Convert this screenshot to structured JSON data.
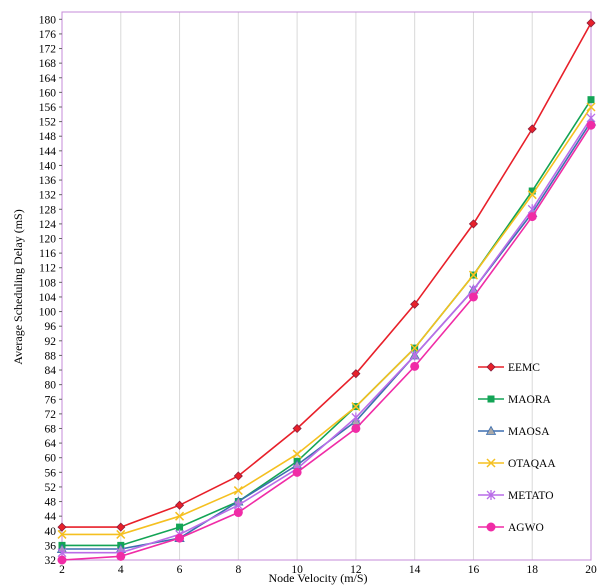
{
  "chart_data": {
    "type": "line",
    "title": "",
    "xlabel": "Node Velocity (m/S)",
    "ylabel": "Average Scheduling Delay (mS)",
    "x": [
      2,
      4,
      6,
      8,
      10,
      12,
      14,
      16,
      18,
      20
    ],
    "x_ticks": [
      "2",
      "4",
      "6",
      "8",
      "10",
      "12",
      "14",
      "16",
      "18",
      "20"
    ],
    "y_ticks": [
      "32",
      "36",
      "40",
      "44",
      "48",
      "52",
      "56",
      "60",
      "64",
      "68",
      "72",
      "76",
      "80",
      "84",
      "88",
      "92",
      "96",
      "100",
      "104",
      "108",
      "112",
      "116",
      "120",
      "124",
      "128",
      "132",
      "136",
      "140",
      "144",
      "148",
      "152",
      "156",
      "160",
      "164",
      "168",
      "172",
      "176",
      "180"
    ],
    "xlim": [
      2,
      20
    ],
    "ylim": [
      32,
      182
    ],
    "grid": "vertical",
    "legend_position": "right-inside",
    "series": [
      {
        "name": "EEMC",
        "color": "#e8202a",
        "marker": "diamond",
        "values": [
          41,
          41,
          47,
          55,
          68,
          83,
          102,
          124,
          150,
          179
        ]
      },
      {
        "name": "MAORA",
        "color": "#13a456",
        "marker": "square",
        "values": [
          36,
          36,
          41,
          48,
          59,
          74,
          90,
          110,
          133,
          158
        ]
      },
      {
        "name": "MAOSA",
        "color": "#3d6fb0",
        "marker": "triangle",
        "values": [
          35,
          35,
          38,
          48,
          58,
          70,
          88,
          106,
          127,
          152
        ]
      },
      {
        "name": "OTAQAA",
        "color": "#f5c020",
        "marker": "x",
        "values": [
          39,
          39,
          44,
          51,
          61,
          74,
          90,
          110,
          132,
          156
        ]
      },
      {
        "name": "METATO",
        "color": "#b96de8",
        "marker": "star",
        "values": [
          34,
          34,
          39,
          47,
          57,
          71,
          88,
          106,
          128,
          153
        ]
      },
      {
        "name": "AGWO",
        "color": "#f02ca6",
        "marker": "circle",
        "values": [
          32,
          33,
          38,
          45,
          56,
          68,
          85,
          104,
          126,
          151
        ]
      }
    ]
  }
}
